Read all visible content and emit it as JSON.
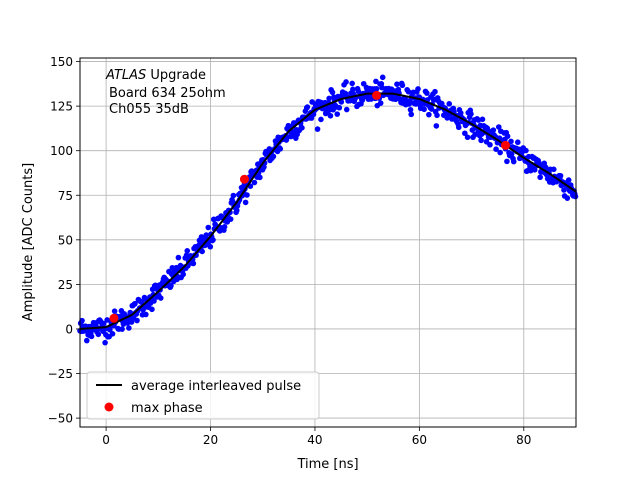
{
  "chart_data": {
    "type": "scatter",
    "title": "",
    "xlabel": "Time [ns]",
    "ylabel": "Amplitude [ADC Counts]",
    "xlim": [
      -5,
      90
    ],
    "ylim": [
      -55,
      152
    ],
    "xticks": [
      0,
      20,
      40,
      60,
      80
    ],
    "yticks": [
      -50,
      -25,
      0,
      25,
      50,
      75,
      100,
      125,
      150
    ],
    "xtick_labels": [
      "0",
      "20",
      "40",
      "60",
      "80"
    ],
    "ytick_labels": [
      "−50",
      "−25",
      "0",
      "25",
      "50",
      "75",
      "100",
      "125",
      "150"
    ],
    "grid": true,
    "annotation": {
      "line1_italic": "ATLAS",
      "line1_rest": " Upgrade",
      "line2": "Board 634 25ohm",
      "line3": "Ch055 35dB"
    },
    "legend": {
      "placement": "lower-left",
      "entries": [
        "average interleaved pulse",
        "max phase"
      ]
    },
    "colors": {
      "samples": "#0000ff",
      "average": "#000000",
      "max_phase": "#ff0000",
      "grid": "#b0b0b0"
    },
    "average_pulse": {
      "x": [
        -5,
        0,
        5,
        10,
        15,
        20,
        25,
        30,
        35,
        40,
        45,
        50,
        55,
        60,
        65,
        70,
        75,
        80,
        85,
        90
      ],
      "y": [
        0,
        1,
        8,
        21,
        35,
        52,
        71,
        93,
        111,
        123,
        129,
        132,
        132,
        129,
        123,
        115,
        106,
        96,
        87,
        77
      ]
    },
    "max_phase": {
      "x": [
        1.5,
        26.5,
        51.8,
        76.5
      ],
      "y": [
        6,
        84,
        131,
        103
      ]
    },
    "samples_note_spread": 6
  }
}
